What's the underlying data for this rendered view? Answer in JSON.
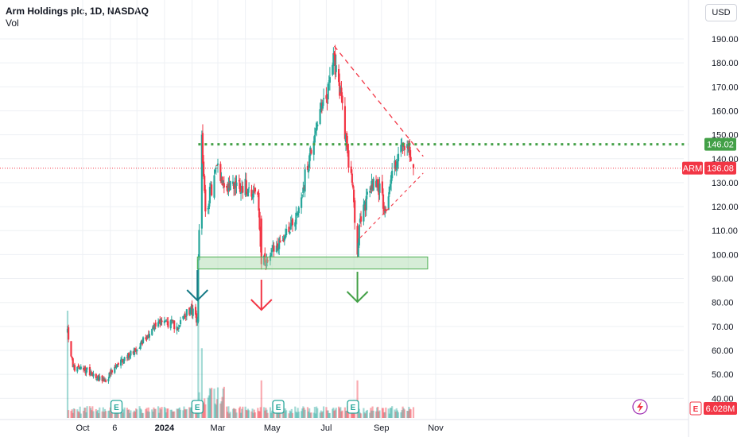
{
  "header": {
    "title": "Arm Holdings plc, 1D, NASDAQ",
    "volume_label": "Vol"
  },
  "currency_button": "USD",
  "price_badges": {
    "resistance": {
      "value": "146.02",
      "color": "#43a047"
    },
    "last": {
      "symbol": "ARM",
      "value": "136.08",
      "color": "#f23645"
    },
    "volume": {
      "value": "6.028M",
      "color": "#f23645"
    }
  },
  "event_marker_label": "E",
  "colors": {
    "up": "#26a69a",
    "down": "#f23645",
    "support_zone": "#a5d6a7",
    "resistance_line": "#43a047",
    "arrow_teal": "#167a86",
    "arrow_red": "#f23645",
    "arrow_green": "#43a047"
  },
  "chart_data": {
    "type": "candlestick",
    "y_axis": {
      "ticks": [
        40,
        50,
        60,
        70,
        80,
        90,
        100,
        110,
        120,
        130,
        140,
        150,
        160,
        170,
        180,
        190
      ],
      "range": [
        37,
        195
      ]
    },
    "x_axis": {
      "tick_labels": [
        "Oct",
        "6",
        "2024",
        "Mar",
        "May",
        "Jul",
        "Sep",
        "Nov"
      ]
    },
    "anchors": [
      {
        "date": "2023-09-14",
        "price": 69
      },
      {
        "date": "2023-09-20",
        "price": 53
      },
      {
        "date": "2023-10-10",
        "price": 51
      },
      {
        "date": "2023-10-25",
        "price": 47
      },
      {
        "date": "2023-11-10",
        "price": 54
      },
      {
        "date": "2023-12-05",
        "price": 63
      },
      {
        "date": "2023-12-28",
        "price": 73
      },
      {
        "date": "2024-01-15",
        "price": 70
      },
      {
        "date": "2024-01-30",
        "price": 77
      },
      {
        "date": "2024-02-07",
        "price": 73
      },
      {
        "date": "2024-02-08",
        "price": 98
      },
      {
        "date": "2024-02-12",
        "price": 150
      },
      {
        "date": "2024-02-16",
        "price": 118
      },
      {
        "date": "2024-03-01",
        "price": 138
      },
      {
        "date": "2024-03-08",
        "price": 128
      },
      {
        "date": "2024-03-20",
        "price": 130
      },
      {
        "date": "2024-04-05",
        "price": 128
      },
      {
        "date": "2024-04-15",
        "price": 125
      },
      {
        "date": "2024-04-19",
        "price": 96
      },
      {
        "date": "2024-04-25",
        "price": 98
      },
      {
        "date": "2024-05-10",
        "price": 105
      },
      {
        "date": "2024-05-30",
        "price": 118
      },
      {
        "date": "2024-06-20",
        "price": 155
      },
      {
        "date": "2024-07-01",
        "price": 165
      },
      {
        "date": "2024-07-09",
        "price": 184
      },
      {
        "date": "2024-07-15",
        "price": 172
      },
      {
        "date": "2024-07-24",
        "price": 145
      },
      {
        "date": "2024-07-30",
        "price": 130
      },
      {
        "date": "2024-08-05",
        "price": 100
      },
      {
        "date": "2024-08-08",
        "price": 115
      },
      {
        "date": "2024-08-25",
        "price": 133
      },
      {
        "date": "2024-09-06",
        "price": 118
      },
      {
        "date": "2024-09-13",
        "price": 135
      },
      {
        "date": "2024-09-25",
        "price": 145
      },
      {
        "date": "2024-10-01",
        "price": 144
      },
      {
        "date": "2024-10-04",
        "price": 139
      },
      {
        "date": "2024-10-07",
        "price": 136.08
      }
    ],
    "volume_spikes": [
      {
        "date": "2023-09-14",
        "size": 1.0
      },
      {
        "date": "2024-02-08",
        "size": 1.0
      },
      {
        "date": "2024-02-12",
        "size": 0.65
      },
      {
        "date": "2024-04-19",
        "size": 0.35
      },
      {
        "date": "2024-08-05",
        "size": 0.35
      }
    ],
    "annotations": {
      "resistance_level": 146,
      "support_zone": {
        "low": 94,
        "high": 99,
        "from": "2024-02-07",
        "to": "2024-10-23"
      },
      "descending_trendline": {
        "from": {
          "date": "2024-07-10",
          "price": 187
        },
        "to": {
          "date": "2024-10-18",
          "price": 141
        }
      },
      "ascending_trendline": {
        "from": {
          "date": "2024-08-08",
          "price": 107
        },
        "to": {
          "date": "2024-10-18",
          "price": 134
        }
      },
      "arrows": [
        {
          "date": "2024-02-07",
          "direction": "down",
          "color_key": "arrow_teal"
        },
        {
          "date": "2024-04-19",
          "direction": "down",
          "color_key": "arrow_red"
        },
        {
          "date": "2024-08-05",
          "direction": "down",
          "color_key": "arrow_green"
        }
      ],
      "earnings_events": [
        "2023-11-08",
        "2024-02-07",
        "2024-05-08",
        "2024-07-31"
      ]
    }
  }
}
